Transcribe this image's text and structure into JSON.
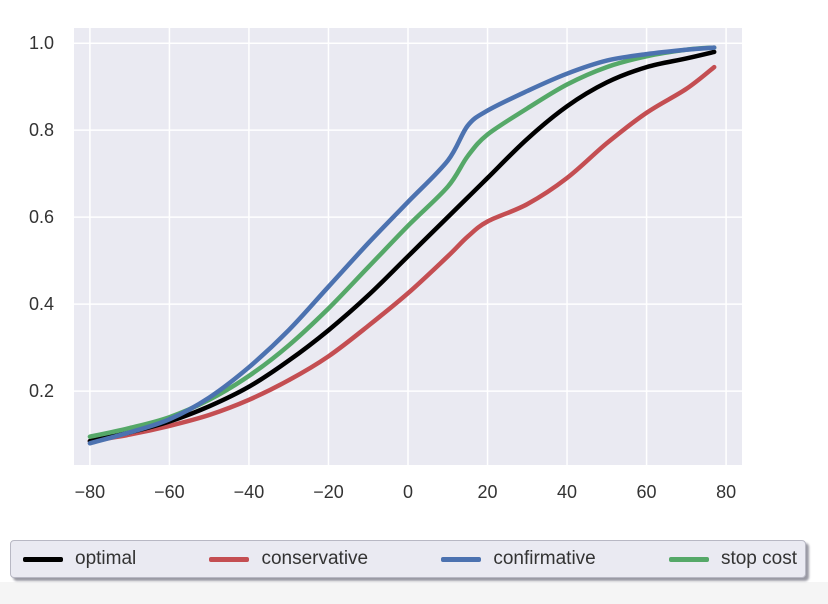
{
  "chart_data": {
    "type": "line",
    "title": "",
    "xlabel": "",
    "ylabel": "",
    "xlim": [
      -84,
      84
    ],
    "ylim": [
      0.03,
      1.035
    ],
    "xticks": [
      -80,
      -60,
      -40,
      -20,
      0,
      20,
      40,
      60,
      80
    ],
    "xtick_labels": [
      "−80",
      "−60",
      "−40",
      "−20",
      "0",
      "20",
      "40",
      "60",
      "80"
    ],
    "yticks": [
      0.2,
      0.4,
      0.6,
      0.8,
      1.0
    ],
    "ytick_labels": [
      "0.2",
      "0.4",
      "0.6",
      "0.8",
      "1.0"
    ],
    "grid": true,
    "background": "#eaeaf2",
    "legend_position": "bottom",
    "x": [
      -80,
      -70,
      -60,
      -50,
      -40,
      -30,
      -20,
      -10,
      0,
      10,
      15,
      20,
      30,
      40,
      50,
      60,
      70,
      77
    ],
    "series": [
      {
        "name": "optimal",
        "color": "#000000",
        "values": [
          0.085,
          0.105,
          0.13,
          0.165,
          0.21,
          0.27,
          0.34,
          0.42,
          0.51,
          0.6,
          0.645,
          0.69,
          0.78,
          0.855,
          0.91,
          0.945,
          0.965,
          0.98
        ]
      },
      {
        "name": "conservative",
        "color": "#c44e52",
        "values": [
          0.085,
          0.1,
          0.12,
          0.145,
          0.18,
          0.225,
          0.28,
          0.35,
          0.425,
          0.51,
          0.555,
          0.59,
          0.63,
          0.69,
          0.77,
          0.84,
          0.895,
          0.945
        ]
      },
      {
        "name": "confirmative",
        "color": "#4c72b0",
        "values": [
          0.08,
          0.105,
          0.135,
          0.185,
          0.255,
          0.34,
          0.44,
          0.54,
          0.635,
          0.73,
          0.81,
          0.845,
          0.89,
          0.93,
          0.96,
          0.975,
          0.985,
          0.99
        ]
      },
      {
        "name": "stop cost",
        "color": "#55a868",
        "values": [
          0.095,
          0.115,
          0.14,
          0.18,
          0.235,
          0.305,
          0.39,
          0.485,
          0.58,
          0.67,
          0.74,
          0.79,
          0.85,
          0.905,
          0.945,
          0.97,
          0.985,
          0.99
        ]
      }
    ]
  }
}
